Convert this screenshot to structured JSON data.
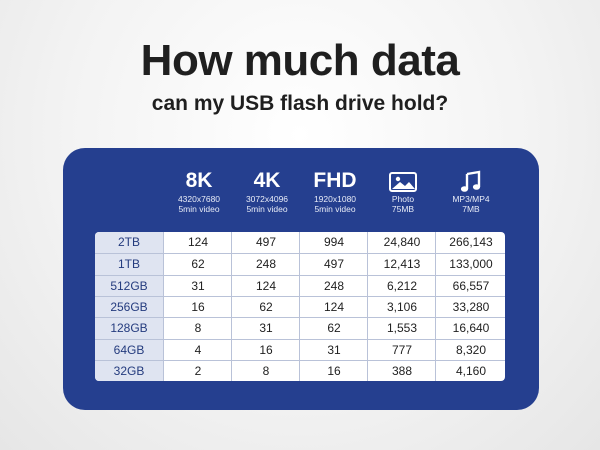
{
  "title": "How much data",
  "subtitle": "can my USB flash drive hold?",
  "columns": [
    {
      "big": "8K",
      "line1": "4320x7680",
      "line2": "5min video",
      "icon": ""
    },
    {
      "big": "4K",
      "line1": "3072x4096",
      "line2": "5min video",
      "icon": ""
    },
    {
      "big": "FHD",
      "line1": "1920x1080",
      "line2": "5min video",
      "icon": ""
    },
    {
      "big": "",
      "line1": "Photo",
      "line2": "75MB",
      "icon": "image-icon"
    },
    {
      "big": "",
      "line1": "MP3/MP4",
      "line2": "7MB",
      "icon": "music-note-icon"
    }
  ],
  "rows": [
    {
      "label": "2TB",
      "values": [
        "124",
        "497",
        "994",
        "24,840",
        "266,143"
      ]
    },
    {
      "label": "1TB",
      "values": [
        "62",
        "248",
        "497",
        "12,413",
        "133,000"
      ]
    },
    {
      "label": "512GB",
      "values": [
        "31",
        "124",
        "248",
        "6,212",
        "66,557"
      ]
    },
    {
      "label": "256GB",
      "values": [
        "16",
        "62",
        "124",
        "3,106",
        "33,280"
      ]
    },
    {
      "label": "128GB",
      "values": [
        "8",
        "31",
        "62",
        "1,553",
        "16,640"
      ]
    },
    {
      "label": "64GB",
      "values": [
        "4",
        "16",
        "31",
        "777",
        "8,320"
      ]
    },
    {
      "label": "32GB",
      "values": [
        "2",
        "8",
        "16",
        "388",
        "4,160"
      ]
    }
  ],
  "colors": {
    "panel": "#253f8f",
    "label_bg": "#dfe4f1",
    "text": "#1f1f1f"
  }
}
